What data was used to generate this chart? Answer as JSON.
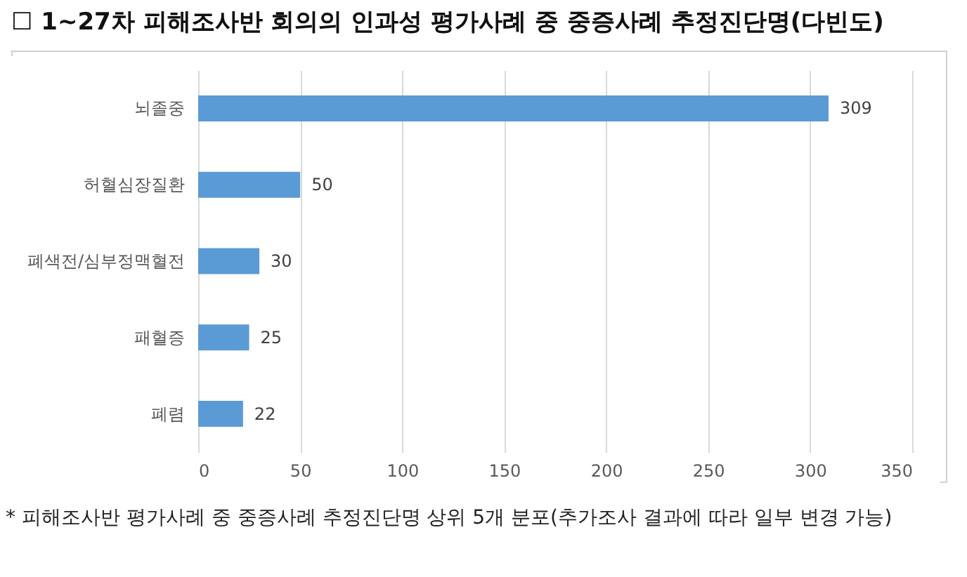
{
  "chart_data": {
    "type": "bar",
    "orientation": "horizontal",
    "title": "☐ 1~27차 피해조사반 회의의 인과성 평가사례 중 중증사례 추정진단명(다빈도)",
    "categories": [
      "뇌졸중",
      "허혈심장질환",
      "폐색전/심부정맥혈전",
      "패혈증",
      "폐렴"
    ],
    "values": [
      309,
      50,
      30,
      25,
      22
    ],
    "color": "#5b9bd5",
    "xlim": [
      0,
      350
    ],
    "xticks": [
      0,
      50,
      100,
      150,
      200,
      250,
      300,
      350
    ],
    "grid": "x",
    "data_labels": true,
    "annotations": [
      "* 피해조사반 평가사례 중 중증사례 추정진단명 상위 5개 분포(추가조사 결과에 따라 일부 변경 가능)"
    ]
  }
}
